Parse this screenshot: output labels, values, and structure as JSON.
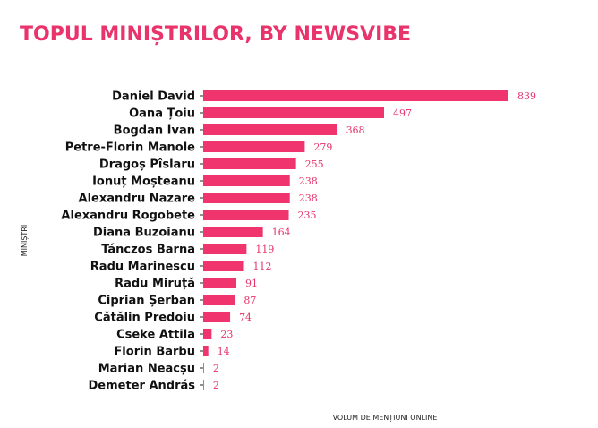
{
  "chart_data": {
    "type": "bar",
    "orientation": "horizontal",
    "title": "TOPUL MINIȘTRILOR, BY NEWSVIBE",
    "xlabel": "VOLUM DE MENȚIUNI ONLINE",
    "ylabel": "MINIȘTRI",
    "xlim": [
      0,
      839
    ],
    "grid": false,
    "bar_color": "#f0346d",
    "title_color": "#e8336b",
    "categories": [
      "Daniel David",
      "Oana Țoiu",
      "Bogdan Ivan",
      "Petre-Florin Manole",
      "Dragoș Pîslaru",
      "Ionuț Moșteanu",
      "Alexandru Nazare",
      "Alexandru Rogobete",
      "Diana Buzoianu",
      "Tánczos Barna",
      "Radu Marinescu",
      "Radu Miruță",
      "Ciprian Șerban",
      "Cătălin Predoiu",
      "Cseke Attila",
      "Florin Barbu",
      "Marian Neacșu",
      "Demeter András"
    ],
    "values": [
      839,
      497,
      368,
      279,
      255,
      238,
      238,
      235,
      164,
      119,
      112,
      91,
      87,
      74,
      23,
      14,
      2,
      2
    ]
  }
}
